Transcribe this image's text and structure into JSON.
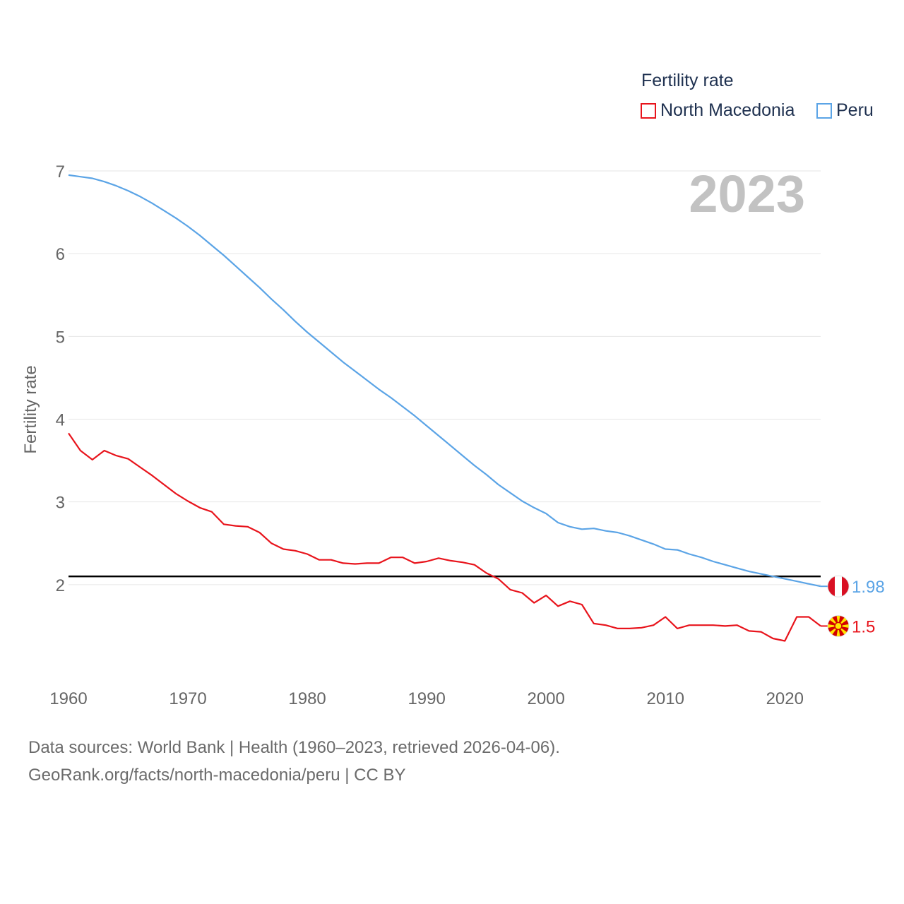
{
  "chart_data": {
    "type": "line",
    "title": "",
    "year_label": "2023",
    "ylabel": "Fertility rate",
    "xlabel": "",
    "xlim": [
      1960,
      2023
    ],
    "ylim": [
      1.0,
      7.0
    ],
    "x_ticks": [
      1960,
      1970,
      1980,
      1990,
      2000,
      2010,
      2020
    ],
    "y_ticks": [
      2,
      3,
      4,
      5,
      6,
      7
    ],
    "reference_line": 2.1,
    "legend": {
      "title": "Fertility rate",
      "position": "top-right"
    },
    "series": [
      {
        "name": "North Macedonia",
        "color": "#e8141c",
        "end_label": "1.5",
        "flag": "north-macedonia-flag-icon",
        "x_start": 1960,
        "values": [
          3.83,
          3.62,
          3.51,
          3.62,
          3.56,
          3.52,
          3.42,
          3.32,
          3.21,
          3.1,
          3.01,
          2.93,
          2.88,
          2.73,
          2.71,
          2.7,
          2.63,
          2.5,
          2.43,
          2.41,
          2.37,
          2.3,
          2.3,
          2.26,
          2.25,
          2.26,
          2.26,
          2.33,
          2.33,
          2.26,
          2.28,
          2.32,
          2.29,
          2.27,
          2.24,
          2.14,
          2.07,
          1.94,
          1.9,
          1.78,
          1.87,
          1.74,
          1.8,
          1.76,
          1.53,
          1.51,
          1.47,
          1.47,
          1.48,
          1.51,
          1.61,
          1.47,
          1.51,
          1.51,
          1.51,
          1.5,
          1.51,
          1.44,
          1.43,
          1.35,
          1.32,
          1.61,
          1.61,
          1.5
        ]
      },
      {
        "name": "Peru",
        "color": "#5ba4e6",
        "end_label": "1.98",
        "flag": "peru-flag-icon",
        "x_start": 1960,
        "values": [
          6.95,
          6.93,
          6.91,
          6.87,
          6.82,
          6.76,
          6.69,
          6.61,
          6.52,
          6.43,
          6.33,
          6.22,
          6.1,
          5.98,
          5.85,
          5.72,
          5.59,
          5.45,
          5.32,
          5.18,
          5.05,
          4.93,
          4.81,
          4.69,
          4.58,
          4.47,
          4.36,
          4.26,
          4.15,
          4.04,
          3.92,
          3.8,
          3.68,
          3.56,
          3.44,
          3.33,
          3.21,
          3.11,
          3.01,
          2.93,
          2.86,
          2.75,
          2.7,
          2.67,
          2.68,
          2.65,
          2.63,
          2.59,
          2.54,
          2.49,
          2.43,
          2.42,
          2.37,
          2.33,
          2.28,
          2.24,
          2.2,
          2.16,
          2.13,
          2.1,
          2.07,
          2.04,
          2.01,
          1.98
        ]
      }
    ]
  },
  "footer": {
    "line1": "Data sources: World Bank | Health (1960–2023, retrieved 2026-04-06).",
    "line2": "GeoRank.org/facts/north-macedonia/peru | CC BY"
  }
}
